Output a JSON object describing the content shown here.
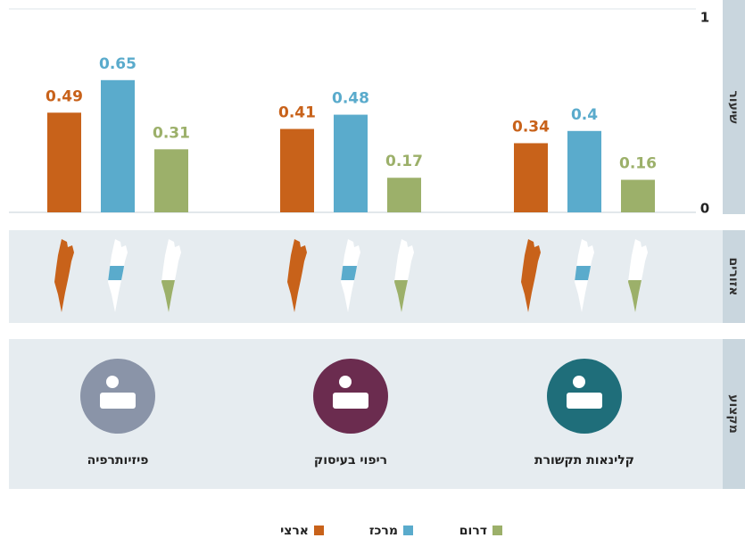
{
  "chart_data": {
    "type": "bar",
    "y_axis_label": "שיעור",
    "regions_label": "אזורים",
    "profession_label": "מקצוע",
    "categories": [
      "פיזיותרפיה",
      "ריפוי בעיסוק",
      "קלינאות תקשורת"
    ],
    "series": [
      {
        "name": "ארצי",
        "color": "#c8621a",
        "values": [
          0.49,
          0.41,
          0.34
        ]
      },
      {
        "name": "מרכז",
        "color": "#5aabcc",
        "values": [
          0.65,
          0.48,
          0.4
        ]
      },
      {
        "name": "דרום",
        "color": "#9cb06a",
        "values": [
          0.31,
          0.17,
          0.16
        ]
      }
    ],
    "ylim": [
      0,
      1
    ],
    "yticks": [
      0,
      1
    ]
  }
}
